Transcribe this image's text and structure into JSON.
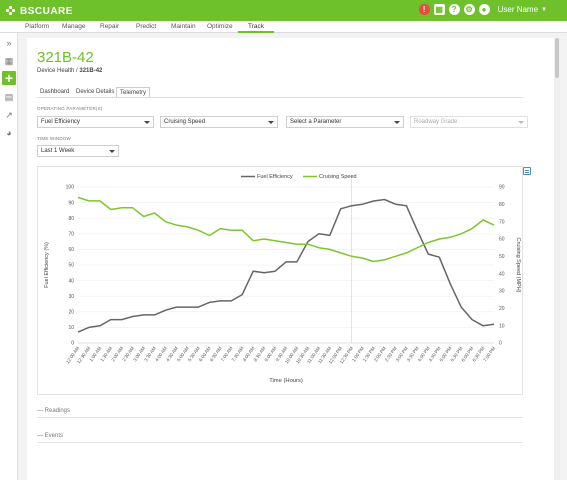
{
  "app": {
    "brand": "BSCUARE"
  },
  "header": {
    "alert_count": "!",
    "user_name": "User Name"
  },
  "nav": {
    "items": [
      "Platform",
      "Manage",
      "Repair",
      "Predict",
      "Maintain",
      "Optimize",
      "Track"
    ],
    "active": "Track"
  },
  "colors": {
    "brand": "#6ec12a",
    "series_fuel": "#666666",
    "series_speed": "#7dc62f"
  },
  "page": {
    "title": "321B-42",
    "breadcrumb_parent": "Device Health",
    "breadcrumb_separator": "/",
    "breadcrumb_current": "321B-42"
  },
  "tabs": [
    {
      "label": "Dashboard"
    },
    {
      "label": "Device Details"
    },
    {
      "label": "Telemetry",
      "active": true
    }
  ],
  "filters": {
    "params_label": "OPERATING PARAMETER(S)",
    "param1": "Fuel Efficiency",
    "param2": "Cruising Speed",
    "param3": "Select a Parameter",
    "param4": "Roadway Grade",
    "window_label": "TIME WINDOW",
    "window": "Last 1 Week"
  },
  "chart_data": {
    "type": "line",
    "x": [
      "12:00 AM",
      "12:30 AM",
      "1:00 AM",
      "1:30 AM",
      "2:00 AM",
      "2:30 AM",
      "3:00 AM",
      "3:30 AM",
      "4:00 AM",
      "4:30 AM",
      "5:00 AM",
      "5:30 AM",
      "6:00 AM",
      "6:30 AM",
      "7:00 AM",
      "7:30 AM",
      "8:00 AM",
      "8:30 AM",
      "9:00 AM",
      "9:30 AM",
      "10:00 AM",
      "10:30 AM",
      "11:00 AM",
      "11:30 AM",
      "12:00 PM",
      "12:30 PM",
      "1:00 PM",
      "1:30 PM",
      "2:00 PM",
      "2:30 PM",
      "3:00 PM",
      "3:30 PM",
      "4:00 PM",
      "4:30 PM",
      "5:00 PM",
      "5:30 PM",
      "6:00 PM",
      "6:30 PM",
      "7:00 PM"
    ],
    "series": [
      {
        "name": "Fuel Efficiency",
        "axis": "left",
        "values": [
          7,
          10,
          11,
          15,
          15,
          17,
          18,
          18,
          21,
          23,
          23,
          23,
          26,
          27,
          27,
          31,
          46,
          45,
          46,
          52,
          52,
          65,
          70,
          69,
          86,
          88,
          89,
          91,
          92,
          89,
          88,
          72,
          57,
          55,
          38,
          23,
          15,
          11,
          12
        ]
      },
      {
        "name": "Cruising Speed",
        "axis": "right",
        "values": [
          84,
          82,
          82,
          77,
          78,
          78,
          73,
          75,
          70,
          68,
          67,
          65,
          62,
          66,
          65,
          65,
          59,
          60,
          59,
          58,
          57,
          57,
          55,
          54,
          52,
          50,
          49,
          47,
          48,
          50,
          52,
          55,
          58,
          60,
          61,
          63,
          66,
          71,
          68
        ]
      }
    ],
    "xlabel": "Time (Hours)",
    "ylabel_left": "Fuel Efficiency (%)",
    "ylabel_right": "Cruising Speed (MPH)",
    "ylim_left": [
      0,
      100
    ],
    "ylim_right": [
      0,
      90
    ],
    "yticks_left": [
      0,
      10,
      20,
      30,
      40,
      50,
      60,
      70,
      80,
      90,
      100
    ],
    "yticks_right": [
      0,
      10,
      20,
      30,
      40,
      50,
      60,
      70,
      80,
      90
    ],
    "legend_position": "top-center",
    "crosshair_x": "12:30 PM",
    "grid": "horizontal"
  },
  "sections": {
    "readings": "Readings",
    "events": "Events"
  }
}
